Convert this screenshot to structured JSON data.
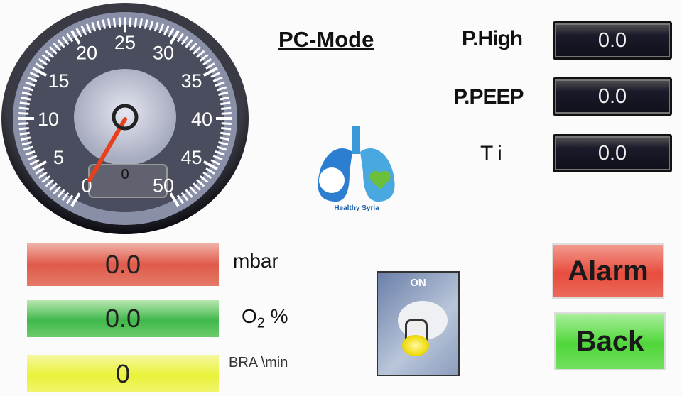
{
  "gauge": {
    "min": 0,
    "max": 50,
    "value": 0,
    "ticks": [
      "0",
      "5",
      "10",
      "15",
      "20",
      "25",
      "30",
      "35",
      "40",
      "45",
      "50"
    ],
    "readout": "0",
    "needle_color": "#e8401c"
  },
  "mode_title": "PC-Mode",
  "params": [
    {
      "label": "P.High",
      "value": "0.0"
    },
    {
      "label": "P.PEEP",
      "value": "0.0"
    },
    {
      "label": "T i",
      "value": "0.0"
    }
  ],
  "logo": {
    "text": "Healthy Syria"
  },
  "readings": [
    {
      "value": "0.0",
      "unit": "mbar",
      "color": "#e05a4a"
    },
    {
      "value": "0.0",
      "unit_main": "O",
      "unit_sub": "2",
      "unit_tail": " %",
      "color": "#3fb84a"
    },
    {
      "value": "0",
      "unit": "BRA \\min",
      "color": "#eaf23a"
    }
  ],
  "switch": {
    "label": "ON",
    "state": "on"
  },
  "buttons": {
    "alarm": "Alarm",
    "back": "Back"
  },
  "colors": {
    "alarm": "#e84c3d",
    "back": "#4fd63a"
  }
}
